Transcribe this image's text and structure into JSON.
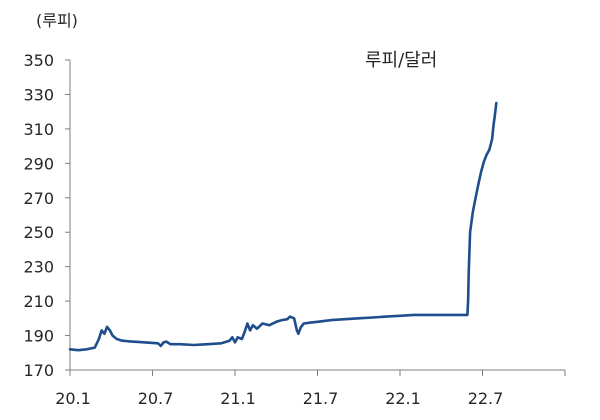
{
  "chart_data": {
    "type": "line",
    "y_unit_label": "(루피)",
    "series": [
      {
        "name": "루피/달러",
        "color": "#1f4e8c",
        "points": [
          [
            0.0,
            182
          ],
          [
            0.6,
            181.5
          ],
          [
            1.2,
            182
          ],
          [
            1.8,
            183
          ],
          [
            2.1,
            188
          ],
          [
            2.3,
            193
          ],
          [
            2.5,
            191
          ],
          [
            2.7,
            195
          ],
          [
            2.9,
            193
          ],
          [
            3.1,
            190
          ],
          [
            3.4,
            188
          ],
          [
            3.8,
            187
          ],
          [
            4.5,
            186.5
          ],
          [
            5.5,
            186
          ],
          [
            6.4,
            185.5
          ],
          [
            6.6,
            184
          ],
          [
            6.8,
            186
          ],
          [
            7.0,
            186.5
          ],
          [
            7.3,
            185
          ],
          [
            8.0,
            185
          ],
          [
            9.0,
            184.5
          ],
          [
            10.0,
            185
          ],
          [
            11.0,
            185.5
          ],
          [
            11.6,
            187
          ],
          [
            11.8,
            189
          ],
          [
            12.0,
            186
          ],
          [
            12.2,
            189
          ],
          [
            12.5,
            188
          ],
          [
            12.7,
            192
          ],
          [
            12.9,
            197
          ],
          [
            13.1,
            193
          ],
          [
            13.3,
            196
          ],
          [
            13.6,
            194
          ],
          [
            14.0,
            197
          ],
          [
            14.5,
            196
          ],
          [
            15.0,
            198
          ],
          [
            15.4,
            199
          ],
          [
            15.8,
            199.5
          ],
          [
            16.0,
            201
          ],
          [
            16.3,
            200
          ],
          [
            16.5,
            193
          ],
          [
            16.6,
            191
          ],
          [
            16.8,
            195
          ],
          [
            17.0,
            197
          ],
          [
            17.5,
            197.5
          ],
          [
            18.0,
            198
          ],
          [
            19.0,
            199
          ],
          [
            20.0,
            199.5
          ],
          [
            21.0,
            200
          ],
          [
            22.0,
            200.5
          ],
          [
            23.0,
            201
          ],
          [
            24.0,
            201.5
          ],
          [
            25.0,
            202
          ],
          [
            26.0,
            202
          ],
          [
            27.0,
            202
          ],
          [
            28.0,
            202
          ],
          [
            28.5,
            202
          ],
          [
            28.9,
            202
          ],
          [
            28.95,
            210
          ],
          [
            29.0,
            228
          ],
          [
            29.1,
            250
          ],
          [
            29.2,
            256
          ],
          [
            29.3,
            262
          ],
          [
            29.5,
            270
          ],
          [
            29.7,
            278
          ],
          [
            29.9,
            285
          ],
          [
            30.1,
            291
          ],
          [
            30.3,
            295
          ],
          [
            30.5,
            298
          ],
          [
            30.7,
            304
          ],
          [
            30.8,
            312
          ],
          [
            30.9,
            318
          ],
          [
            31.0,
            325
          ]
        ]
      }
    ],
    "x_ticks": [
      {
        "label": "20.1",
        "value": 0
      },
      {
        "label": "20.7",
        "value": 6
      },
      {
        "label": "21.1",
        "value": 12
      },
      {
        "label": "21.7",
        "value": 18
      },
      {
        "label": "22.1",
        "value": 24
      },
      {
        "label": "22.7",
        "value": 30
      }
    ],
    "y_ticks": [
      170,
      190,
      210,
      230,
      250,
      270,
      290,
      310,
      330,
      350
    ],
    "xlim": [
      0,
      36
    ],
    "ylim": [
      170,
      350
    ],
    "grid": false,
    "legend": "series label top-right"
  }
}
